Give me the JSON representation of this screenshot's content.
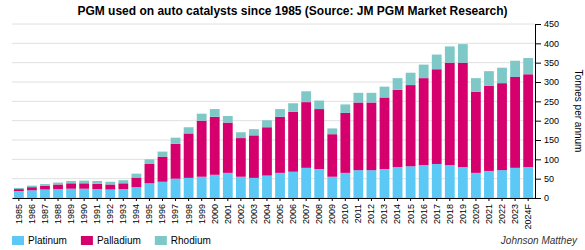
{
  "chart_data": {
    "type": "bar",
    "stacked": true,
    "title": "PGM used on auto catalysts since 1985 (Source: JM PGM Market Research)",
    "y_label": "Tonnes per annum",
    "annotations": [
      "Johnson Matthey"
    ],
    "categories": [
      "1985",
      "1986",
      "1987",
      "1988",
      "1989",
      "1990",
      "1991",
      "1992",
      "1993",
      "1994",
      "1995",
      "1996",
      "1997",
      "1998",
      "1999",
      "2000",
      "2001",
      "2002",
      "2003",
      "2004",
      "2005",
      "2006",
      "2007",
      "2008",
      "2009",
      "2010",
      "2011",
      "2012",
      "2013",
      "2014",
      "2015",
      "2016",
      "2017",
      "2018",
      "2019",
      "2020",
      "2021",
      "2022",
      "2023",
      "2024F"
    ],
    "series": [
      {
        "name": "Platinum",
        "color": "#5BC8F5",
        "values": [
          18,
          20,
          22,
          23,
          24,
          24,
          23,
          22,
          23,
          28,
          38,
          42,
          50,
          52,
          55,
          60,
          65,
          55,
          52,
          58,
          65,
          68,
          78,
          75,
          55,
          65,
          72,
          72,
          75,
          80,
          82,
          85,
          88,
          85,
          80,
          65,
          70,
          72,
          78,
          80
        ]
      },
      {
        "name": "Palladium",
        "color": "#D5006D",
        "values": [
          5,
          8,
          10,
          12,
          14,
          14,
          14,
          13,
          15,
          25,
          50,
          65,
          90,
          115,
          145,
          150,
          130,
          100,
          110,
          125,
          145,
          155,
          170,
          155,
          110,
          155,
          175,
          175,
          185,
          200,
          210,
          225,
          245,
          265,
          270,
          210,
          220,
          225,
          235,
          240
        ]
      },
      {
        "name": "Rhodium",
        "color": "#7EC8C8",
        "values": [
          3,
          4,
          4,
          5,
          6,
          7,
          7,
          7,
          8,
          10,
          12,
          13,
          16,
          16,
          18,
          20,
          17,
          15,
          16,
          18,
          20,
          22,
          28,
          22,
          15,
          22,
          25,
          25,
          28,
          30,
          32,
          35,
          38,
          42,
          48,
          35,
          38,
          40,
          42,
          42
        ]
      }
    ],
    "ylim": [
      0,
      450
    ],
    "yticks": [
      0,
      50,
      100,
      150,
      200,
      250,
      300,
      350,
      400,
      450
    ],
    "grid": true,
    "legend": "bottom-left"
  }
}
